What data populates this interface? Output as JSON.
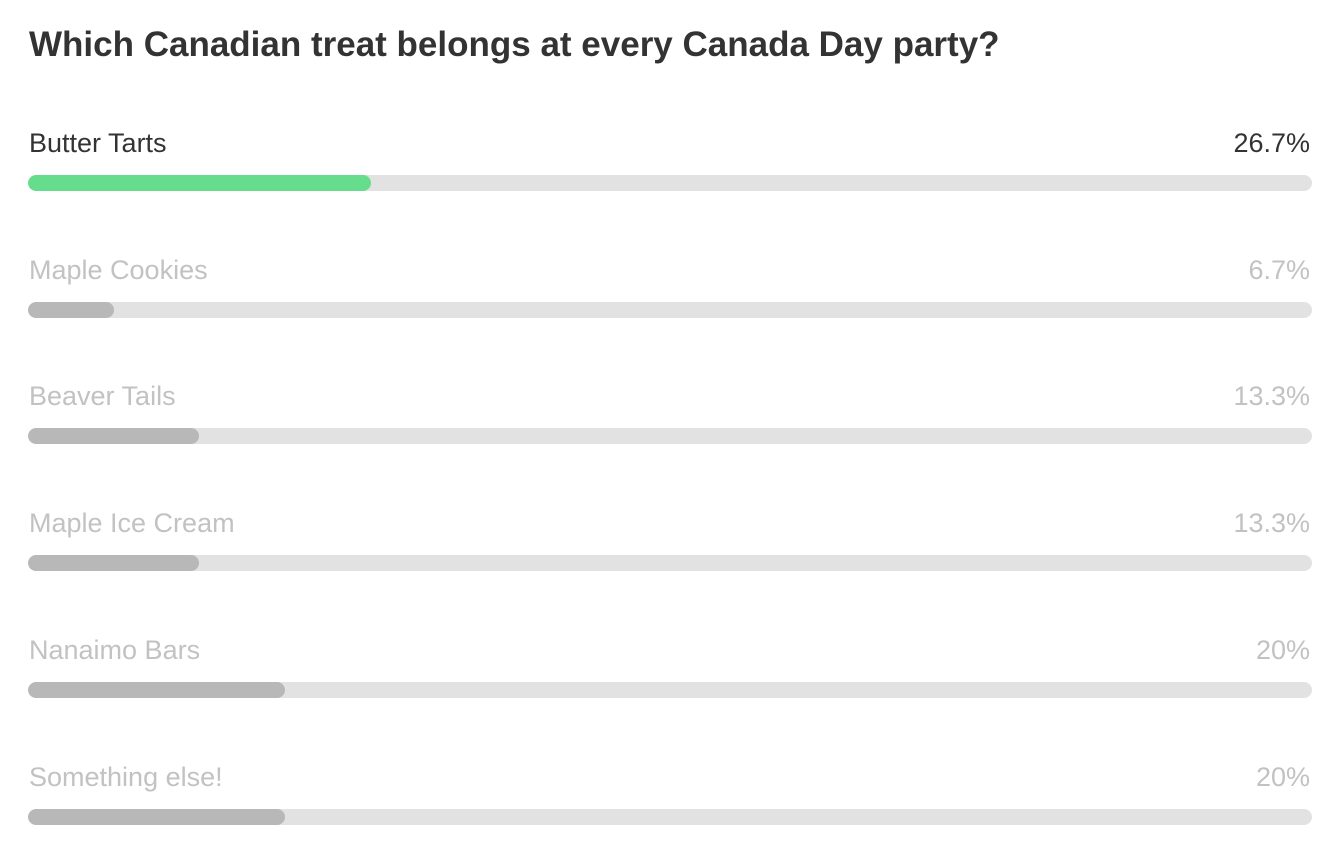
{
  "poll": {
    "question": "Which Canadian treat belongs at every Canada Day party?",
    "leading_color": "#66dd8c",
    "other_color": "#b8b8b8",
    "track_color": "#e2e2e2",
    "options": [
      {
        "label": "Butter Tarts",
        "percent_text": "26.7%",
        "value": 26.7,
        "leading": true
      },
      {
        "label": "Maple Cookies",
        "percent_text": "6.7%",
        "value": 6.7,
        "leading": false
      },
      {
        "label": "Beaver Tails",
        "percent_text": "13.3%",
        "value": 13.3,
        "leading": false
      },
      {
        "label": "Maple Ice Cream",
        "percent_text": "13.3%",
        "value": 13.3,
        "leading": false
      },
      {
        "label": "Nanaimo Bars",
        "percent_text": "20%",
        "value": 20,
        "leading": false
      },
      {
        "label": "Something else!",
        "percent_text": "20%",
        "value": 20,
        "leading": false
      }
    ]
  }
}
